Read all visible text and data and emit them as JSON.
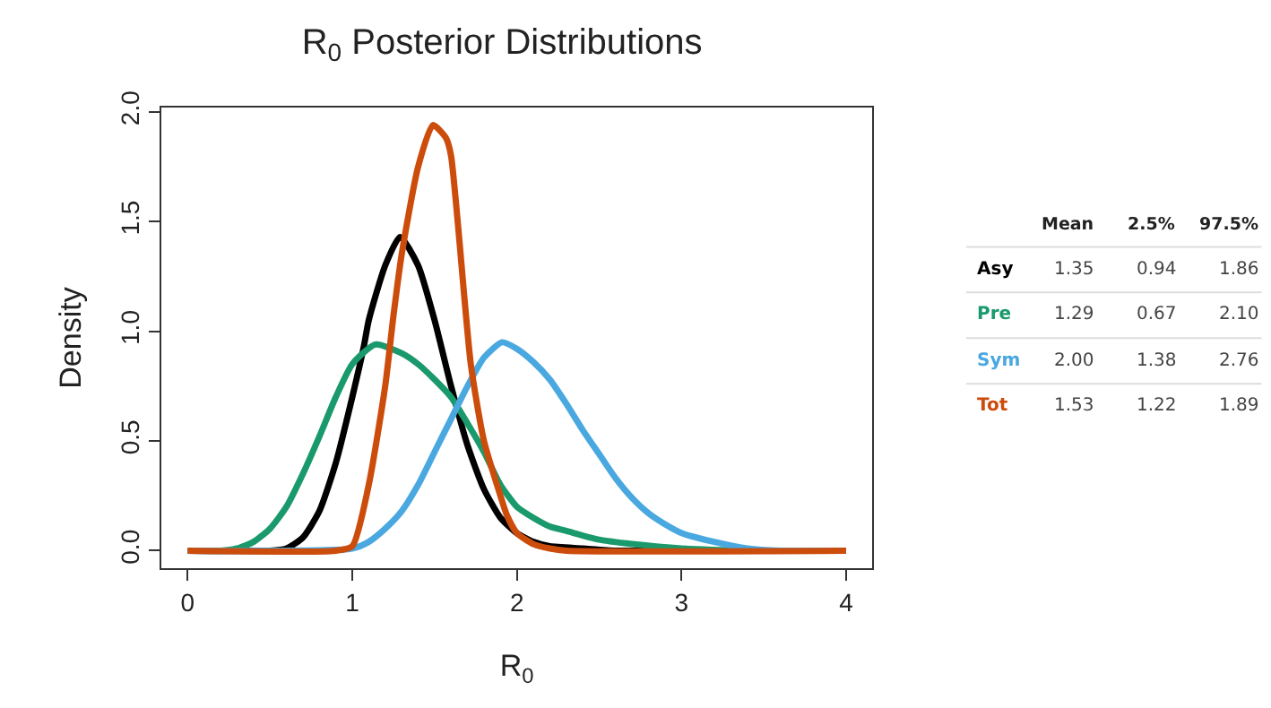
{
  "chart_data": {
    "type": "line",
    "title": "R$_{0}$ Posterior Distributions",
    "xlabel": "R$_{0}$",
    "ylabel": "Density",
    "xlim": [
      -0.16,
      4.16
    ],
    "ylim": [
      -0.08,
      2.02
    ],
    "xticks": [
      0,
      1,
      2,
      3,
      4
    ],
    "yticks": [
      {
        "value": 0,
        "label": "0.0"
      },
      0.5,
      {
        "value": 1,
        "label": "1.0"
      },
      1.5,
      {
        "value": 2,
        "label": "2.0"
      }
    ],
    "legend": false,
    "marker": "none",
    "line_style": "solid",
    "series": [
      {
        "name": "Asy",
        "color": "#000000",
        "x": [
          0,
          0.5,
          0.6,
          0.7,
          0.8,
          0.9,
          1.0,
          1.07,
          1.1,
          1.2,
          1.29,
          1.4,
          1.5,
          1.6,
          1.7,
          1.8,
          1.9,
          2.0,
          2.1,
          2.2,
          2.4,
          2.6,
          3.0,
          4.0
        ],
        "values": [
          0,
          0,
          0.01,
          0.06,
          0.18,
          0.4,
          0.7,
          0.93,
          1.05,
          1.3,
          1.43,
          1.3,
          1.05,
          0.75,
          0.48,
          0.28,
          0.15,
          0.08,
          0.04,
          0.02,
          0.01,
          0,
          0,
          0
        ]
      },
      {
        "name": "Pre",
        "color": "#1a9a6c",
        "x": [
          0,
          0.2,
          0.3,
          0.4,
          0.5,
          0.6,
          0.7,
          0.8,
          0.9,
          1.0,
          1.14,
          1.3,
          1.4,
          1.5,
          1.6,
          1.7,
          1.8,
          1.9,
          2.0,
          2.1,
          2.2,
          2.3,
          2.5,
          2.7,
          3.0,
          3.4,
          4.0
        ],
        "values": [
          0,
          0,
          0.01,
          0.04,
          0.1,
          0.2,
          0.35,
          0.52,
          0.7,
          0.85,
          0.94,
          0.9,
          0.85,
          0.78,
          0.7,
          0.58,
          0.45,
          0.3,
          0.2,
          0.15,
          0.11,
          0.09,
          0.05,
          0.03,
          0.01,
          0,
          0
        ]
      },
      {
        "name": "Sym",
        "color": "#4aa8e0",
        "x": [
          0,
          1.0,
          1.1,
          1.2,
          1.3,
          1.4,
          1.5,
          1.6,
          1.7,
          1.8,
          1.91,
          2.0,
          2.1,
          2.2,
          2.3,
          2.4,
          2.5,
          2.6,
          2.7,
          2.8,
          2.9,
          3.0,
          3.2,
          3.4,
          3.6,
          3.8,
          4.0
        ],
        "values": [
          0,
          0.01,
          0.04,
          0.1,
          0.18,
          0.3,
          0.45,
          0.6,
          0.75,
          0.88,
          0.95,
          0.92,
          0.86,
          0.78,
          0.67,
          0.55,
          0.44,
          0.33,
          0.24,
          0.17,
          0.12,
          0.08,
          0.04,
          0.01,
          0.0,
          0,
          0
        ]
      },
      {
        "name": "Tot",
        "color": "#cc4c0c",
        "x": [
          0,
          0.9,
          1.0,
          1.1,
          1.2,
          1.25,
          1.3,
          1.4,
          1.49,
          1.57,
          1.6,
          1.72,
          1.8,
          1.9,
          1.94,
          2.0,
          2.1,
          2.2,
          2.3,
          4.0
        ],
        "values": [
          0,
          0,
          0.02,
          0.3,
          0.75,
          1.07,
          1.35,
          1.75,
          1.94,
          1.88,
          1.8,
          0.85,
          0.5,
          0.25,
          0.16,
          0.08,
          0.03,
          0.01,
          0,
          0
        ]
      }
    ],
    "annotations": [
      "Mean",
      "2.5%",
      "97.5%",
      "1.35",
      "0.94",
      "1.86",
      "1.29",
      "0.67",
      "2.10",
      "2.00",
      "1.38",
      "2.76",
      "1.53",
      "1.22",
      "1.89"
    ]
  }
}
